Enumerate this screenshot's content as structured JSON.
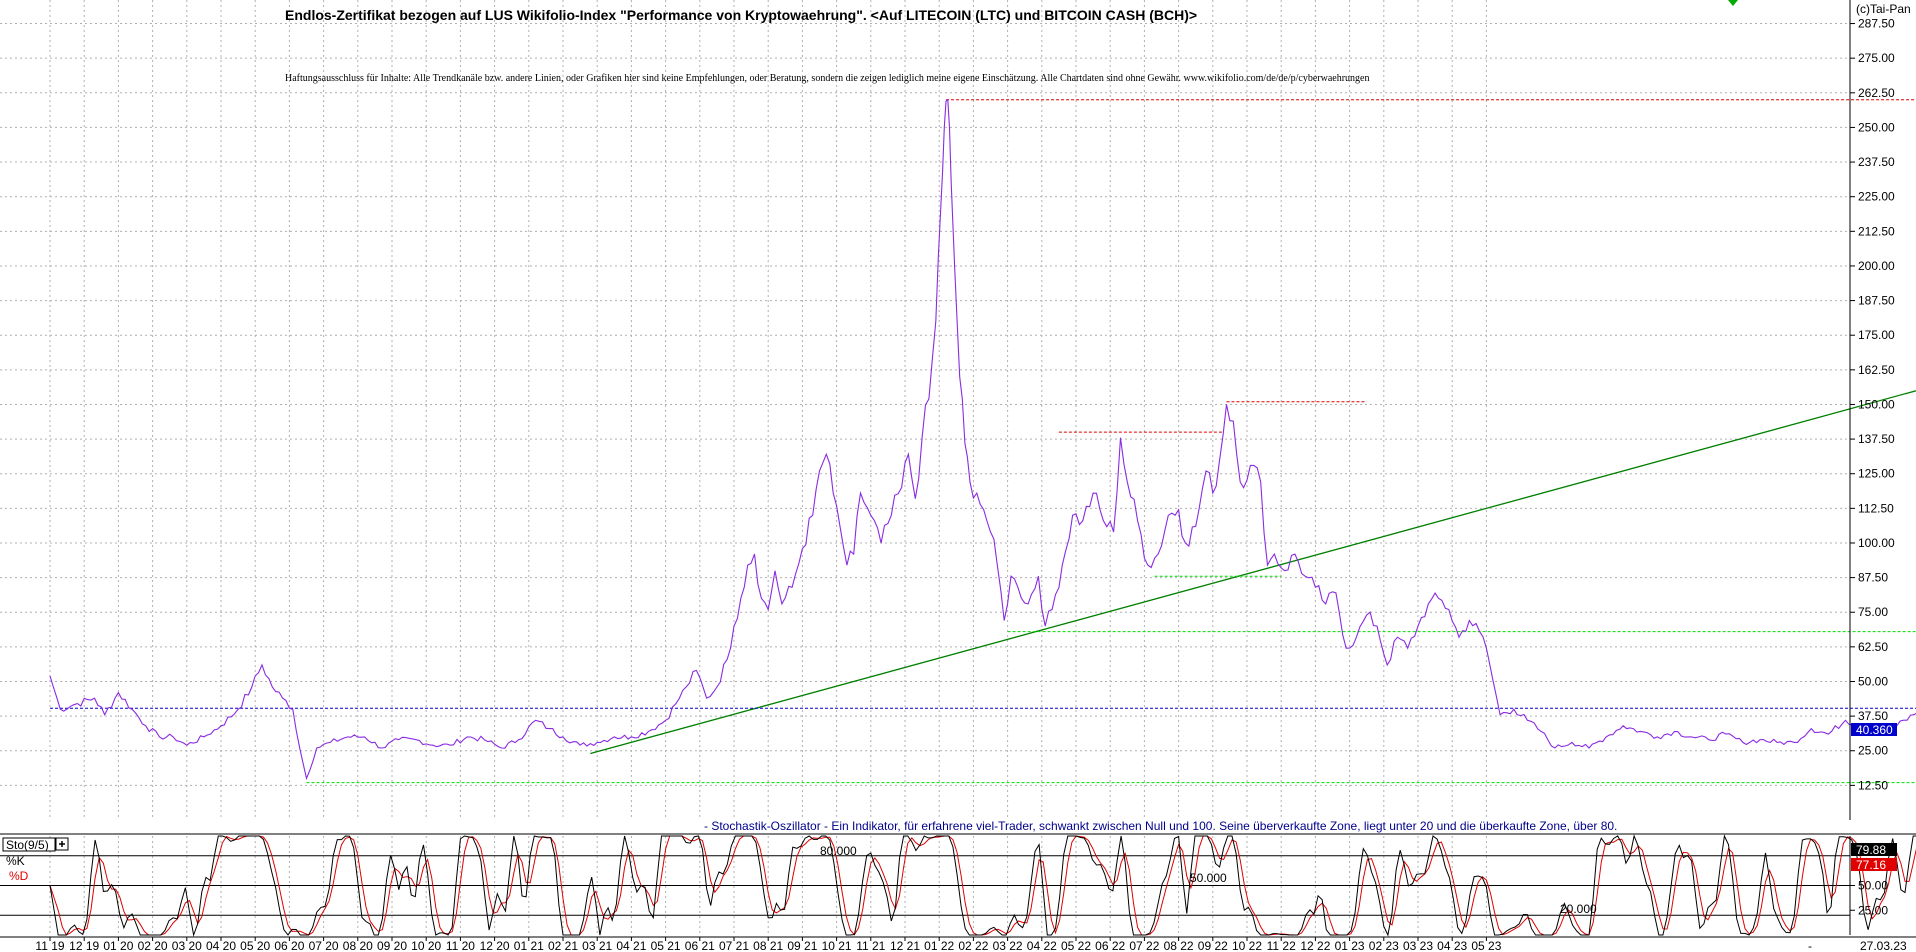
{
  "title": "Endlos-Zertifikat bezogen auf LUS Wikifolio-Index \"Performance von Kryptowaehrung\". <Auf LITECOIN (LTC) und BITCOIN CASH (BCH)>",
  "copyright": "(c)Tai-Pan",
  "disclaimer": "Haftungsausschluss für Inhalte: Alle Trendkanäle bzw. andere Linien, oder Grafiken hier sind keine Empfehlungen, oder Beratung, sondern die zeigen lediglich meine eigene Einschätzung. Alle Chartdaten sind ohne Gewähr.  www.wikifolio.com/de/de/p/cyberwaehrungen",
  "colors": {
    "price": "#8a2be2",
    "trend": "#008000",
    "support": "#00dd00",
    "resistance": "#e00000",
    "current": "#0000cc",
    "k_line": "#000000",
    "d_line": "#e00000"
  },
  "chart_data": [
    {
      "type": "line",
      "ylim": [
        0,
        296
      ],
      "yticks": [
        "287.50",
        "275.00",
        "262.50",
        "250.00",
        "237.50",
        "225.00",
        "212.50",
        "200.00",
        "187.50",
        "175.00",
        "162.50",
        "150.00",
        "137.50",
        "125.00",
        "112.50",
        "100.00",
        "87.50",
        "75.00",
        "62.50",
        "50.00",
        "37.50",
        "25.00",
        "12.50"
      ],
      "current_value": "40.360",
      "series": [
        {
          "points": [
            [
              0,
              52
            ],
            [
              0.3,
              40
            ],
            [
              0.8,
              42
            ],
            [
              1.3,
              44
            ],
            [
              1.6,
              38
            ],
            [
              2,
              46
            ],
            [
              2.4,
              40
            ],
            [
              2.8,
              34
            ],
            [
              3.2,
              30
            ],
            [
              3.6,
              30
            ],
            [
              4,
              27
            ],
            [
              4.5,
              30
            ],
            [
              5,
              34
            ],
            [
              5.5,
              40
            ],
            [
              5.9,
              48
            ],
            [
              6.2,
              56
            ],
            [
              6.5,
              48
            ],
            [
              6.8,
              44
            ],
            [
              7.1,
              40
            ],
            [
              7.3,
              26
            ],
            [
              7.5,
              15
            ],
            [
              7.8,
              26
            ],
            [
              8.2,
              28
            ],
            [
              8.7,
              30
            ],
            [
              9.2,
              30
            ],
            [
              9.7,
              26
            ],
            [
              10.2,
              29
            ],
            [
              10.7,
              29
            ],
            [
              11.2,
              27
            ],
            [
              11.7,
              27
            ],
            [
              12.2,
              30
            ],
            [
              12.7,
              29
            ],
            [
              13.2,
              26
            ],
            [
              13.7,
              29
            ],
            [
              14.2,
              36
            ],
            [
              14.6,
              33
            ],
            [
              15,
              30
            ],
            [
              15.5,
              27
            ],
            [
              16,
              28
            ],
            [
              16.5,
              30
            ],
            [
              17,
              30
            ],
            [
              17.5,
              32
            ],
            [
              18,
              36
            ],
            [
              18.3,
              42
            ],
            [
              18.6,
              48
            ],
            [
              18.9,
              54
            ],
            [
              19.2,
              44
            ],
            [
              19.5,
              48
            ],
            [
              19.8,
              58
            ],
            [
              20,
              70
            ],
            [
              20.2,
              80
            ],
            [
              20.4,
              92
            ],
            [
              20.6,
              96
            ],
            [
              20.8,
              80
            ],
            [
              21,
              76
            ],
            [
              21.2,
              90
            ],
            [
              21.4,
              78
            ],
            [
              21.7,
              84
            ],
            [
              22,
              98
            ],
            [
              22.3,
              110
            ],
            [
              22.5,
              126
            ],
            [
              22.7,
              132
            ],
            [
              22.9,
              118
            ],
            [
              23.1,
              106
            ],
            [
              23.3,
              92
            ],
            [
              23.5,
              96
            ],
            [
              23.7,
              118
            ],
            [
              24,
              110
            ],
            [
              24.3,
              100
            ],
            [
              24.6,
              110
            ],
            [
              24.9,
              120
            ],
            [
              25.1,
              132
            ],
            [
              25.3,
              116
            ],
            [
              25.5,
              138
            ],
            [
              25.7,
              152
            ],
            [
              25.9,
              180
            ],
            [
              26.05,
              222
            ],
            [
              26.15,
              250
            ],
            [
              26.25,
              260
            ],
            [
              26.35,
              230
            ],
            [
              26.45,
              200
            ],
            [
              26.6,
              160
            ],
            [
              26.75,
              136
            ],
            [
              26.9,
              122
            ],
            [
              27.1,
              118
            ],
            [
              27.3,
              112
            ],
            [
              27.5,
              104
            ],
            [
              27.7,
              92
            ],
            [
              27.9,
              72
            ],
            [
              28.1,
              88
            ],
            [
              28.3,
              84
            ],
            [
              28.6,
              78
            ],
            [
              28.9,
              88
            ],
            [
              29.1,
              70
            ],
            [
              29.3,
              76
            ],
            [
              29.6,
              92
            ],
            [
              29.9,
              110
            ],
            [
              30.2,
              108
            ],
            [
              30.5,
              118
            ],
            [
              30.8,
              108
            ],
            [
              31.1,
              104
            ],
            [
              31.3,
              138
            ],
            [
              31.5,
              122
            ],
            [
              31.8,
              108
            ],
            [
              32.1,
              92
            ],
            [
              32.4,
              96
            ],
            [
              32.7,
              110
            ],
            [
              33,
              112
            ],
            [
              33.2,
              100
            ],
            [
              33.5,
              106
            ],
            [
              33.8,
              126
            ],
            [
              34,
              118
            ],
            [
              34.2,
              130
            ],
            [
              34.4,
              150
            ],
            [
              34.6,
              144
            ],
            [
              34.8,
              122
            ],
            [
              35.1,
              128
            ],
            [
              35.4,
              122
            ],
            [
              35.6,
              92
            ],
            [
              35.8,
              96
            ],
            [
              36.1,
              90
            ],
            [
              36.4,
              96
            ],
            [
              36.7,
              88
            ],
            [
              37,
              84
            ],
            [
              37.3,
              78
            ],
            [
              37.6,
              82
            ],
            [
              37.9,
              62
            ],
            [
              38.2,
              66
            ],
            [
              38.5,
              74
            ],
            [
              38.8,
              70
            ],
            [
              39.1,
              56
            ],
            [
              39.4,
              66
            ],
            [
              39.7,
              62
            ],
            [
              40,
              70
            ],
            [
              40.3,
              78
            ],
            [
              40.6,
              80
            ],
            [
              40.9,
              76
            ],
            [
              41.2,
              66
            ],
            [
              41.5,
              72
            ],
            [
              41.8,
              68
            ],
            [
              42,
              62
            ],
            [
              42.2,
              50
            ],
            [
              42.4,
              38
            ],
            [
              42.8,
              40
            ],
            [
              43.2,
              36
            ],
            [
              43.6,
              32
            ],
            [
              44,
              26
            ],
            [
              44.5,
              28
            ],
            [
              45,
              26
            ],
            [
              45.5,
              30
            ],
            [
              46,
              34
            ],
            [
              46.5,
              32
            ],
            [
              47,
              30
            ],
            [
              47.5,
              32
            ],
            [
              48,
              30
            ],
            [
              48.5,
              29
            ],
            [
              49,
              31
            ],
            [
              49.5,
              28
            ],
            [
              50,
              29
            ],
            [
              50.5,
              28
            ],
            [
              51,
              28
            ],
            [
              51.5,
              33
            ],
            [
              52,
              31
            ],
            [
              52.5,
              36
            ],
            [
              53,
              34
            ],
            [
              53.5,
              31
            ],
            [
              54,
              34
            ],
            [
              54.5,
              38
            ],
            [
              55,
              42
            ],
            [
              55.5,
              44
            ],
            [
              56,
              43
            ],
            [
              56.5,
              40
            ],
            [
              57,
              34
            ],
            [
              57.4,
              38
            ],
            [
              57.7,
              40.36
            ]
          ]
        }
      ],
      "annotations": {
        "trendline": [
          [
            15.8,
            24
          ],
          [
            60.5,
            175
          ]
        ],
        "resistance_lines": [
          {
            "y": 260,
            "x": [
              26.2,
              60.5
            ]
          },
          {
            "y": 140,
            "x": [
              29.5,
              34.3
            ]
          },
          {
            "y": 151,
            "x": [
              34.4,
              38.5
            ]
          }
        ],
        "support_lines": [
          {
            "y": 88,
            "x": [
              32.3,
              36
            ]
          },
          {
            "y": 68,
            "x": [
              28,
              60.5
            ]
          },
          {
            "y": 13.5,
            "x": [
              7.5,
              60.5
            ]
          }
        ],
        "current_line": {
          "y": 40.36,
          "x": [
            0,
            60.5
          ]
        }
      }
    },
    {
      "type": "line",
      "title": "- Stochastik-Oszillator - Ein Indikator, für erfahrene viel-Trader, schwankt zwischen Null und 100. Seine überverkaufte Zone, liegt unter 20 und die überkaufte Zone, über 80.",
      "indicator_label": "Sto(9/5)",
      "legend": [
        "%K",
        "%D"
      ],
      "ylim": [
        0,
        100
      ],
      "yticks": [
        "25.00",
        "50.00"
      ],
      "level_labels": [
        "80.000",
        "50.000",
        "20.000"
      ],
      "k_value": "79.88",
      "d_value": "77.16"
    }
  ],
  "x_axis": {
    "labels": [
      "11 19",
      "12 19",
      "01 20",
      "02 20",
      "03 20",
      "04 20",
      "05 20",
      "06 20",
      "07 20",
      "08 20",
      "09 20",
      "10 20",
      "11 20",
      "12 20",
      "01 21",
      "02 21",
      "03 21",
      "04 21",
      "05 21",
      "06 21",
      "07 21",
      "08 21",
      "09 21",
      "10 21",
      "11 21",
      "12 21",
      "01 22",
      "02 22",
      "03 22",
      "04 22",
      "05 22",
      "06 22",
      "07 22",
      "08 22",
      "09 22",
      "10 22",
      "11 22",
      "12 22",
      "01 23",
      "02 23",
      "03 23",
      "04 23",
      "05 23"
    ],
    "end_date": "27.03.23",
    "dash": "-"
  }
}
